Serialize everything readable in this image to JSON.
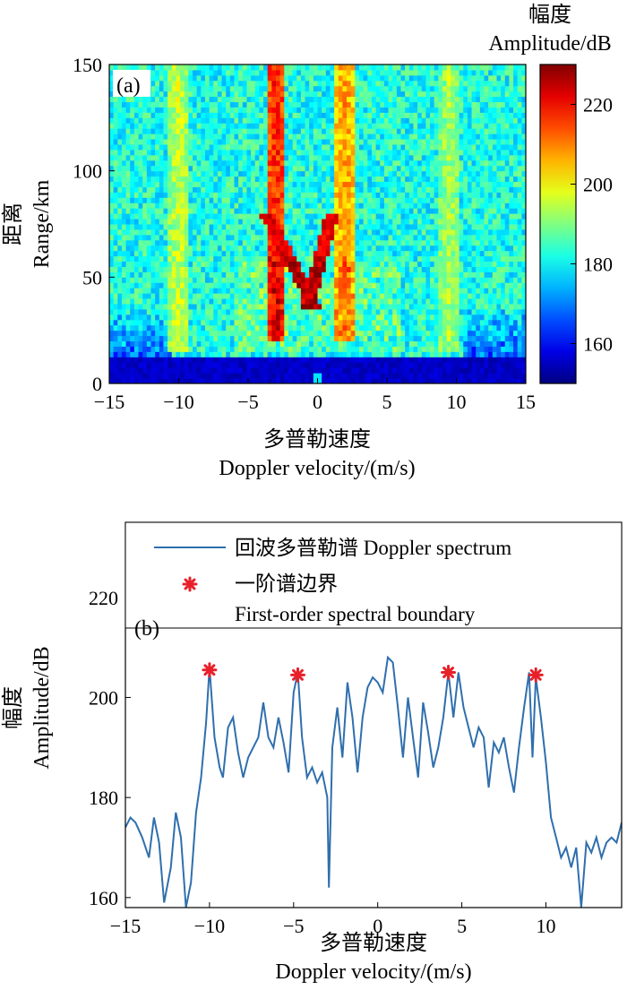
{
  "chart_data": [
    {
      "type": "heatmap",
      "panel_label": "(a)",
      "xlabel_cn": "多普勒速度",
      "xlabel_en": "Doppler velocity/(m/s)",
      "ylabel_cn": "距离",
      "ylabel_en": "Range/km",
      "colorbar_label_cn": "幅度",
      "colorbar_label_en": "Amplitude/dB",
      "xlim": [
        -15,
        15
      ],
      "ylim": [
        0,
        150
      ],
      "xticks": [
        -15,
        -10,
        -5,
        0,
        5,
        10,
        15
      ],
      "yticks": [
        0,
        50,
        100,
        150
      ],
      "colorbar_range": [
        150,
        230
      ],
      "colorbar_ticks": [
        160,
        180,
        200,
        220
      ],
      "colormap": "jet",
      "features": {
        "blind_zone_range_km": [
          0,
          12
        ],
        "first_order_bands": [
          {
            "center_velocity": -3.0,
            "range_km": [
              20,
              150
            ],
            "peak_db": 222
          },
          {
            "center_velocity": 2.0,
            "range_km": [
              20,
              150
            ],
            "peak_db": 212
          },
          {
            "center_velocity": -10.0,
            "range_km": [
              15,
              150
            ],
            "peak_db": 200
          },
          {
            "center_velocity": 9.5,
            "range_km": [
              15,
              150
            ],
            "peak_db": 198
          }
        ],
        "v_shape_strong_echo": {
          "vertex_velocity": -0.5,
          "vertex_range_km": 40,
          "peak_db": 226
        },
        "noise_floor_db": 182
      }
    },
    {
      "type": "line",
      "panel_label": "(b)",
      "xlabel_cn": "多普勒速度",
      "xlabel_en": "Doppler velocity/(m/s)",
      "ylabel_cn": "幅度",
      "ylabel_en": "Amplitude/dB",
      "xlim": [
        -15,
        14.5
      ],
      "ylim": [
        158,
        235
      ],
      "xticks": [
        -15,
        -10,
        -5,
        0,
        5,
        10
      ],
      "yticks": [
        160,
        180,
        200,
        220
      ],
      "legend_position": "top",
      "series": [
        {
          "name": "回波多普勒谱 Doppler spectrum",
          "color": "#2f6fad",
          "x": [
            -15,
            -14.7,
            -14.4,
            -14.0,
            -13.6,
            -13.3,
            -13.0,
            -12.7,
            -12.3,
            -12.0,
            -11.7,
            -11.4,
            -11.1,
            -10.8,
            -10.5,
            -10.2,
            -10.0,
            -9.7,
            -9.4,
            -9.2,
            -8.9,
            -8.6,
            -8.3,
            -8.0,
            -7.7,
            -7.4,
            -7.1,
            -6.8,
            -6.5,
            -6.2,
            -5.9,
            -5.6,
            -5.3,
            -5.0,
            -4.75,
            -4.5,
            -4.2,
            -3.9,
            -3.6,
            -3.3,
            -3.0,
            -2.9,
            -2.7,
            -2.4,
            -2.1,
            -1.8,
            -1.5,
            -1.2,
            -0.9,
            -0.6,
            -0.3,
            0.0,
            0.3,
            0.6,
            0.9,
            1.2,
            1.5,
            1.8,
            2.1,
            2.4,
            2.7,
            3.0,
            3.3,
            3.6,
            3.9,
            4.2,
            4.5,
            4.8,
            5.1,
            5.4,
            5.7,
            6.0,
            6.3,
            6.6,
            6.9,
            7.2,
            7.5,
            7.8,
            8.1,
            8.4,
            8.7,
            9.0,
            9.2,
            9.4,
            9.7,
            10.0,
            10.3,
            10.6,
            10.9,
            11.2,
            11.5,
            11.8,
            12.1,
            12.4,
            12.7,
            13.0,
            13.3,
            13.6,
            13.9,
            14.2,
            14.5
          ],
          "y": [
            174,
            176,
            175,
            172,
            168,
            176,
            171,
            159,
            166,
            177,
            172,
            158,
            163,
            177,
            184,
            195,
            206,
            192,
            186,
            184,
            194,
            196,
            189,
            184,
            188,
            190,
            192,
            199,
            192,
            190,
            196,
            191,
            185,
            201,
            205,
            192,
            184,
            186,
            183,
            185,
            180,
            162,
            190,
            198,
            188,
            203,
            196,
            185,
            196,
            202,
            204,
            203,
            201,
            208,
            207,
            198,
            188,
            200,
            192,
            184,
            199,
            193,
            186,
            190,
            196,
            205,
            196,
            205,
            198,
            194,
            190,
            194,
            192,
            182,
            191,
            189,
            192,
            186,
            181,
            190,
            198,
            205,
            188,
            204,
            196,
            187,
            176,
            172,
            168,
            170,
            166,
            170,
            158,
            171,
            169,
            172,
            168,
            171,
            172,
            171,
            175
          ]
        },
        {
          "name": "一阶谱边界",
          "name_en": "First-order spectral boundary",
          "color": "#e8202a",
          "marker": "asterisk",
          "x": [
            -10.0,
            -4.75,
            4.2,
            9.4
          ],
          "y": [
            205.5,
            204.5,
            205.0,
            204.5
          ]
        }
      ]
    }
  ]
}
